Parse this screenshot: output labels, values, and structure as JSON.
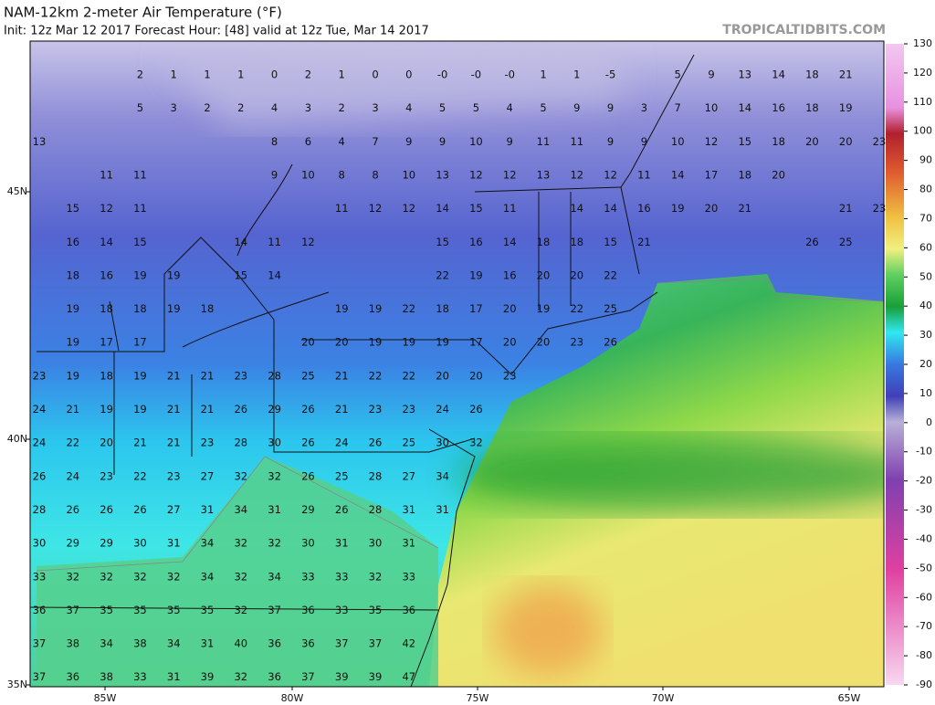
{
  "header": {
    "title": "NAM-12km 2-meter Air Temperature (°F)",
    "subtitle": "Init: 12z Mar 12 2017   Forecast Hour: [48]   valid at 12z Tue, Mar 14 2017",
    "brand": "TROPICALTIDBITS.COM"
  },
  "colorbar": {
    "ticks": [
      130,
      120,
      110,
      100,
      90,
      80,
      70,
      60,
      50,
      40,
      30,
      20,
      10,
      0,
      -10,
      -20,
      -30,
      -40,
      -50,
      -60,
      -70,
      -80,
      -90
    ]
  },
  "axes": {
    "lat": [
      "45N",
      "40N",
      "35N"
    ],
    "lon": [
      "85W",
      "80W",
      "75W",
      "70W",
      "65W"
    ]
  },
  "stations": {
    "rows": [
      [
        null,
        null,
        null,
        2,
        1,
        1,
        1,
        0,
        2,
        1,
        0,
        0,
        {
          "value": 0,
          "label": "-0"
        },
        {
          "value": 0,
          "label": "-0"
        },
        {
          "value": 0,
          "label": "-0"
        },
        1,
        1,
        -5,
        null,
        5,
        9,
        13,
        14,
        18,
        21
      ],
      [
        null,
        null,
        null,
        5,
        3,
        2,
        2,
        4,
        3,
        2,
        3,
        4,
        5,
        5,
        4,
        5,
        9,
        9,
        3,
        7,
        10,
        14,
        16,
        18,
        19
      ],
      [
        13,
        null,
        null,
        null,
        null,
        null,
        null,
        8,
        6,
        4,
        7,
        9,
        9,
        10,
        9,
        11,
        11,
        9,
        9,
        10,
        12,
        15,
        18,
        20,
        20,
        23
      ],
      [
        null,
        null,
        11,
        11,
        null,
        null,
        null,
        9,
        10,
        8,
        8,
        10,
        13,
        12,
        12,
        13,
        12,
        12,
        11,
        14,
        17,
        18,
        20
      ],
      [
        null,
        15,
        12,
        11,
        null,
        null,
        null,
        null,
        null,
        11,
        12,
        12,
        14,
        15,
        11,
        null,
        14,
        14,
        16,
        19,
        20,
        21,
        null,
        null,
        21,
        23
      ],
      [
        null,
        16,
        14,
        15,
        null,
        null,
        14,
        11,
        12,
        null,
        null,
        null,
        15,
        16,
        14,
        18,
        18,
        15,
        21,
        null,
        null,
        null,
        null,
        26,
        25
      ],
      [
        null,
        18,
        16,
        19,
        19,
        null,
        15,
        14,
        null,
        null,
        null,
        null,
        22,
        19,
        16,
        20,
        20,
        22
      ],
      [
        null,
        19,
        18,
        18,
        19,
        18,
        null,
        null,
        null,
        19,
        19,
        22,
        18,
        17,
        20,
        19,
        22,
        25
      ],
      [
        null,
        19,
        17,
        17,
        null,
        null,
        null,
        null,
        20,
        20,
        19,
        19,
        19,
        17,
        20,
        20,
        23,
        26
      ],
      [
        23,
        19,
        18,
        19,
        21,
        21,
        23,
        28,
        25,
        21,
        22,
        22,
        20,
        20,
        23
      ],
      [
        24,
        21,
        19,
        19,
        21,
        21,
        26,
        29,
        26,
        21,
        23,
        23,
        24,
        26
      ],
      [
        24,
        22,
        20,
        21,
        21,
        23,
        28,
        30,
        26,
        24,
        26,
        25,
        30,
        32
      ],
      [
        26,
        24,
        23,
        22,
        23,
        27,
        32,
        32,
        26,
        25,
        28,
        27,
        34
      ],
      [
        28,
        26,
        26,
        26,
        27,
        31,
        34,
        31,
        29,
        26,
        28,
        31,
        31
      ],
      [
        30,
        29,
        29,
        30,
        31,
        34,
        32,
        32,
        30,
        31,
        30,
        31
      ],
      [
        33,
        32,
        32,
        32,
        32,
        34,
        32,
        34,
        33,
        33,
        32,
        33
      ],
      [
        36,
        37,
        35,
        35,
        35,
        35,
        32,
        37,
        36,
        33,
        35,
        36
      ],
      [
        37,
        38,
        34,
        38,
        34,
        31,
        40,
        36,
        36,
        37,
        37,
        42
      ],
      [
        37,
        36,
        38,
        33,
        31,
        39,
        32,
        36,
        37,
        39,
        39,
        47
      ]
    ]
  }
}
